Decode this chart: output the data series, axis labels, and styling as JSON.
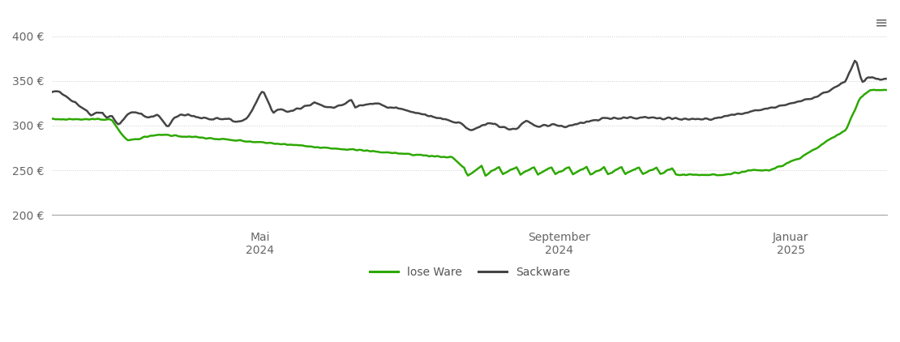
{
  "yticks": [
    200,
    250,
    300,
    350,
    400
  ],
  "ylim": [
    190,
    415
  ],
  "xlim_days": [
    0,
    430
  ],
  "xtick_labels": [
    "Mai\n2024",
    "September\n2024",
    "Januar\n2025"
  ],
  "xtick_positions": [
    107,
    261,
    380
  ],
  "lose_ware_color": "#2ca800",
  "sackware_color": "#444444",
  "bg_color": "#ffffff",
  "grid_color": "#cccccc",
  "legend_labels": [
    "lose Ware",
    "Sackware"
  ],
  "line_width": 1.8
}
